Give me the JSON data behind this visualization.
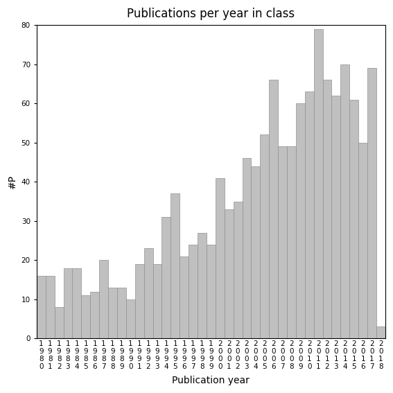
{
  "title": "Publications per year in class",
  "xlabel": "Publication year",
  "ylabel": "#P",
  "years": [
    "1980",
    "1981",
    "1982",
    "1983",
    "1984",
    "1985",
    "1986",
    "1987",
    "1988",
    "1989",
    "1990",
    "1991",
    "1992",
    "1993",
    "1994",
    "1995",
    "1996",
    "1997",
    "1998",
    "1999",
    "2000",
    "2001",
    "2002",
    "2003",
    "2004",
    "2005",
    "2006",
    "2007",
    "2008",
    "2009",
    "2010",
    "2011",
    "2012",
    "2013",
    "2014",
    "2015",
    "2016",
    "2017",
    "2018"
  ],
  "values": [
    16,
    16,
    8,
    18,
    18,
    11,
    12,
    20,
    13,
    13,
    10,
    19,
    23,
    19,
    31,
    37,
    21,
    24,
    27,
    24,
    41,
    33,
    35,
    46,
    44,
    52,
    66,
    49,
    49,
    60,
    63,
    79,
    66,
    62,
    70,
    61,
    50,
    69,
    3
  ],
  "bar_color": "#c0c0c0",
  "bar_edge_color": "#909090",
  "ylim": [
    0,
    80
  ],
  "yticks": [
    0,
    10,
    20,
    30,
    40,
    50,
    60,
    70,
    80
  ],
  "background_color": "#ffffff",
  "title_fontsize": 12,
  "label_fontsize": 10,
  "tick_fontsize": 7.5
}
